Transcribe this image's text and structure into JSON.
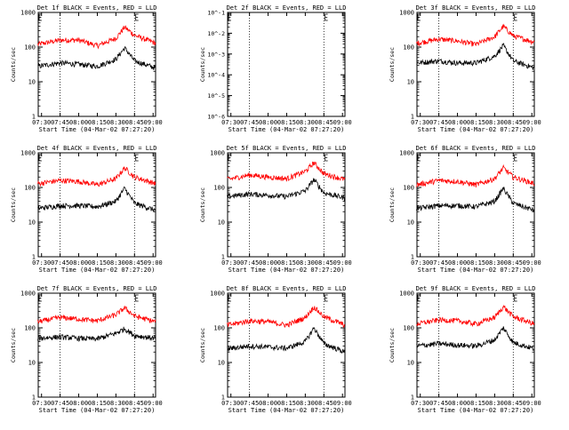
{
  "chart_data": [
    {
      "type": "line",
      "title": "Det 1f BLACK = Events, RED = LLD",
      "xlabel": "Start Time (04-Mar-02 07:27:20)",
      "ylabel": "Counts/sec",
      "x_tick_labels": [
        "07:30",
        "07:45",
        "08:00",
        "08:15",
        "08:30",
        "08:45",
        "09:00"
      ],
      "y_tick_labels": [
        "1",
        "10",
        "100",
        "1000"
      ],
      "yscale": "log",
      "ylim": [
        1,
        1000
      ],
      "series": [
        {
          "color": "#ff0000",
          "x": [
            "07:27",
            "07:45",
            "08:00",
            "08:15",
            "08:30",
            "08:37",
            "08:45",
            "09:02"
          ],
          "values": [
            120,
            160,
            160,
            110,
            180,
            380,
            220,
            130
          ]
        },
        {
          "color": "#000000",
          "x": [
            "07:27",
            "07:45",
            "08:00",
            "08:15",
            "08:30",
            "08:37",
            "08:45",
            "09:02"
          ],
          "values": [
            28,
            35,
            32,
            28,
            45,
            95,
            40,
            25
          ]
        }
      ]
    },
    {
      "type": "line",
      "title": "Det 2f BLACK = Events, RED = LLD",
      "xlabel": "Start Time (04-Mar-02 07:27:20)",
      "ylabel": "Counts/sec",
      "x_tick_labels": [
        "07:30",
        "07:45",
        "08:00",
        "08:15",
        "08:30",
        "08:45",
        "09:00"
      ],
      "y_tick_labels": [
        "10^-1",
        "10^-2",
        "10^-3",
        "10^-4",
        "10^-5",
        "10^-6"
      ],
      "yscale": "log",
      "ylim": [
        1e-06,
        0.1
      ],
      "series": []
    },
    {
      "type": "line",
      "title": "Det 3f BLACK = Events, RED = LLD",
      "xlabel": "Start Time (04-Mar-02 07:27:20)",
      "ylabel": "Counts/sec",
      "x_tick_labels": [
        "07:30",
        "07:45",
        "08:00",
        "08:15",
        "08:30",
        "08:45",
        "09:00"
      ],
      "y_tick_labels": [
        "1",
        "10",
        "100",
        "1000"
      ],
      "yscale": "log",
      "ylim": [
        1,
        1000
      ],
      "series": [
        {
          "color": "#ff0000",
          "x": [
            "07:27",
            "07:45",
            "08:00",
            "08:15",
            "08:30",
            "08:37",
            "08:45",
            "09:02"
          ],
          "values": [
            130,
            170,
            150,
            120,
            200,
            400,
            210,
            140
          ]
        },
        {
          "color": "#000000",
          "x": [
            "07:27",
            "07:45",
            "08:00",
            "08:15",
            "08:30",
            "08:37",
            "08:45",
            "09:02"
          ],
          "values": [
            35,
            40,
            35,
            35,
            55,
            110,
            40,
            25
          ]
        }
      ]
    },
    {
      "type": "line",
      "title": "Det 4f BLACK = Events, RED = LLD",
      "xlabel": "Start Time (04-Mar-02 07:27:20)",
      "ylabel": "Counts/sec",
      "x_tick_labels": [
        "07:30",
        "07:45",
        "08:00",
        "08:15",
        "08:30",
        "08:45",
        "09:00"
      ],
      "y_tick_labels": [
        "1",
        "10",
        "100",
        "1000"
      ],
      "yscale": "log",
      "ylim": [
        1,
        1000
      ],
      "series": [
        {
          "color": "#ff0000",
          "x": [
            "07:27",
            "07:45",
            "08:00",
            "08:15",
            "08:30",
            "08:37",
            "08:45",
            "09:02"
          ],
          "values": [
            130,
            160,
            150,
            120,
            180,
            370,
            200,
            130
          ]
        },
        {
          "color": "#000000",
          "x": [
            "07:27",
            "07:45",
            "08:00",
            "08:15",
            "08:30",
            "08:37",
            "08:45",
            "09:02"
          ],
          "values": [
            25,
            30,
            30,
            28,
            40,
            95,
            35,
            22
          ]
        }
      ]
    },
    {
      "type": "line",
      "title": "Det 5f BLACK = Events, RED = LLD",
      "xlabel": "Start Time (04-Mar-02 07:27:20)",
      "ylabel": "Counts/sec",
      "x_tick_labels": [
        "07:30",
        "07:45",
        "08:00",
        "08:15",
        "08:30",
        "08:45",
        "09:00"
      ],
      "y_tick_labels": [
        "1",
        "10",
        "100",
        "1000"
      ],
      "yscale": "log",
      "ylim": [
        1,
        1000
      ],
      "series": [
        {
          "color": "#ff0000",
          "x": [
            "07:27",
            "07:45",
            "08:00",
            "08:15",
            "08:30",
            "08:37",
            "08:45",
            "09:02"
          ],
          "values": [
            170,
            230,
            200,
            180,
            290,
            520,
            250,
            170
          ]
        },
        {
          "color": "#000000",
          "x": [
            "07:27",
            "07:45",
            "08:00",
            "08:15",
            "08:30",
            "08:37",
            "08:45",
            "09:02"
          ],
          "values": [
            55,
            65,
            60,
            55,
            80,
            170,
            70,
            50
          ]
        }
      ]
    },
    {
      "type": "line",
      "title": "Det 6f BLACK = Events, RED = LLD",
      "xlabel": "Start Time (04-Mar-02 07:27:20)",
      "ylabel": "Counts/sec",
      "x_tick_labels": [
        "07:30",
        "07:45",
        "08:00",
        "08:15",
        "08:30",
        "08:45",
        "09:00"
      ],
      "y_tick_labels": [
        "1",
        "10",
        "100",
        "1000"
      ],
      "yscale": "log",
      "ylim": [
        1,
        1000
      ],
      "series": [
        {
          "color": "#ff0000",
          "x": [
            "07:27",
            "07:45",
            "08:00",
            "08:15",
            "08:30",
            "08:37",
            "08:45",
            "09:02"
          ],
          "values": [
            120,
            160,
            150,
            120,
            180,
            370,
            200,
            130
          ]
        },
        {
          "color": "#000000",
          "x": [
            "07:27",
            "07:45",
            "08:00",
            "08:15",
            "08:30",
            "08:37",
            "08:45",
            "09:02"
          ],
          "values": [
            25,
            30,
            30,
            28,
            40,
            95,
            35,
            22
          ]
        }
      ]
    },
    {
      "type": "line",
      "title": "Det 7f BLACK = Events, RED = LLD",
      "xlabel": "Start Time (04-Mar-02 07:27:20)",
      "ylabel": "Counts/sec",
      "x_tick_labels": [
        "07:30",
        "07:45",
        "08:00",
        "08:15",
        "08:30",
        "08:45",
        "09:00"
      ],
      "y_tick_labels": [
        "1",
        "10",
        "100",
        "1000"
      ],
      "yscale": "log",
      "ylim": [
        1,
        1000
      ],
      "series": [
        {
          "color": "#ff0000",
          "x": [
            "07:27",
            "07:45",
            "08:00",
            "08:15",
            "08:30",
            "08:37",
            "08:45",
            "09:02"
          ],
          "values": [
            150,
            200,
            180,
            160,
            240,
            380,
            220,
            150
          ]
        },
        {
          "color": "#000000",
          "x": [
            "07:27",
            "07:45",
            "08:00",
            "08:15",
            "08:30",
            "08:37",
            "08:45",
            "09:02"
          ],
          "values": [
            50,
            55,
            50,
            48,
            70,
            95,
            60,
            50
          ]
        }
      ]
    },
    {
      "type": "line",
      "title": "Det 8f BLACK = Events, RED = LLD",
      "xlabel": "Start Time (04-Mar-02 07:27:20)",
      "ylabel": "Counts/sec",
      "x_tick_labels": [
        "07:30",
        "07:45",
        "08:00",
        "08:15",
        "08:30",
        "08:45",
        "09:00"
      ],
      "y_tick_labels": [
        "1",
        "10",
        "100",
        "1000"
      ],
      "yscale": "log",
      "ylim": [
        1,
        1000
      ],
      "series": [
        {
          "color": "#ff0000",
          "x": [
            "07:27",
            "07:45",
            "08:00",
            "08:15",
            "08:30",
            "08:37",
            "08:45",
            "09:02"
          ],
          "values": [
            120,
            160,
            150,
            120,
            200,
            400,
            210,
            120
          ]
        },
        {
          "color": "#000000",
          "x": [
            "07:27",
            "07:45",
            "08:00",
            "08:15",
            "08:30",
            "08:37",
            "08:45",
            "09:02"
          ],
          "values": [
            25,
            30,
            28,
            26,
            40,
            100,
            35,
            20
          ]
        }
      ]
    },
    {
      "type": "line",
      "title": "Det 9f BLACK = Events, RED = LLD",
      "xlabel": "Start Time (04-Mar-02 07:27:20)",
      "ylabel": "Counts/sec",
      "x_tick_labels": [
        "07:30",
        "07:45",
        "08:00",
        "08:15",
        "08:30",
        "08:45",
        "09:00"
      ],
      "y_tick_labels": [
        "1",
        "10",
        "100",
        "1000"
      ],
      "yscale": "log",
      "ylim": [
        1,
        1000
      ],
      "series": [
        {
          "color": "#ff0000",
          "x": [
            "07:27",
            "07:45",
            "08:00",
            "08:15",
            "08:30",
            "08:37",
            "08:45",
            "09:02"
          ],
          "values": [
            130,
            170,
            160,
            130,
            200,
            410,
            210,
            130
          ]
        },
        {
          "color": "#000000",
          "x": [
            "07:27",
            "07:45",
            "08:00",
            "08:15",
            "08:30",
            "08:37",
            "08:45",
            "09:02"
          ],
          "values": [
            30,
            35,
            32,
            30,
            45,
            100,
            38,
            25
          ]
        }
      ]
    }
  ]
}
